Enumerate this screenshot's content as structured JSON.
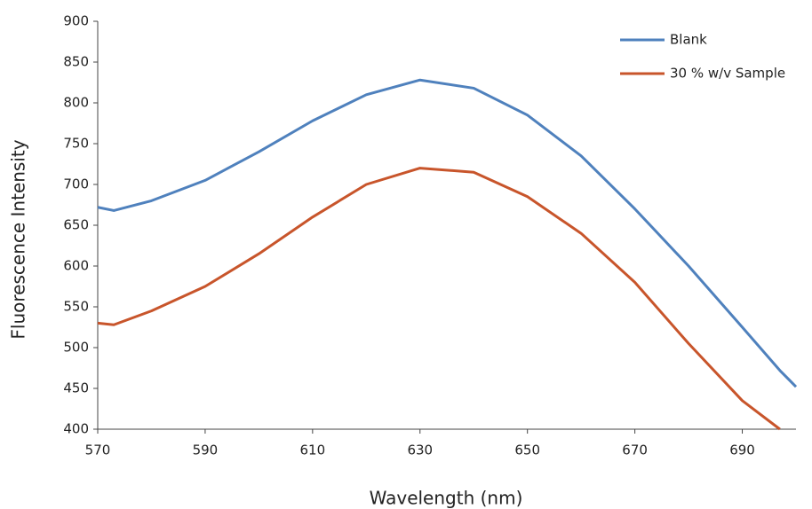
{
  "chart_data": {
    "type": "line",
    "x_label": "Wavelength (nm)",
    "y_label": "Fluorescence Intensity",
    "x": [
      570,
      573,
      580,
      590,
      600,
      610,
      620,
      630,
      640,
      650,
      660,
      670,
      680,
      690,
      697,
      700
    ],
    "series": [
      {
        "name": "Blank",
        "color": "#4f81bd",
        "values": [
          672,
          668,
          680,
          705,
          740,
          778,
          810,
          828,
          818,
          785,
          735,
          670,
          600,
          525,
          472,
          452
        ]
      },
      {
        "name": "30 % w/v Sample",
        "color": "#c8552b",
        "values": [
          530,
          528,
          545,
          575,
          615,
          660,
          700,
          720,
          715,
          685,
          640,
          580,
          505,
          435,
          400,
          null
        ]
      }
    ],
    "xlim": [
      570,
      700
    ],
    "xticks": [
      570,
      590,
      610,
      630,
      650,
      670,
      690
    ],
    "ylim": [
      400,
      900
    ],
    "yticks": [
      400,
      450,
      500,
      550,
      600,
      650,
      700,
      750,
      800,
      850,
      900
    ],
    "grid": false,
    "legend": "top-right"
  }
}
